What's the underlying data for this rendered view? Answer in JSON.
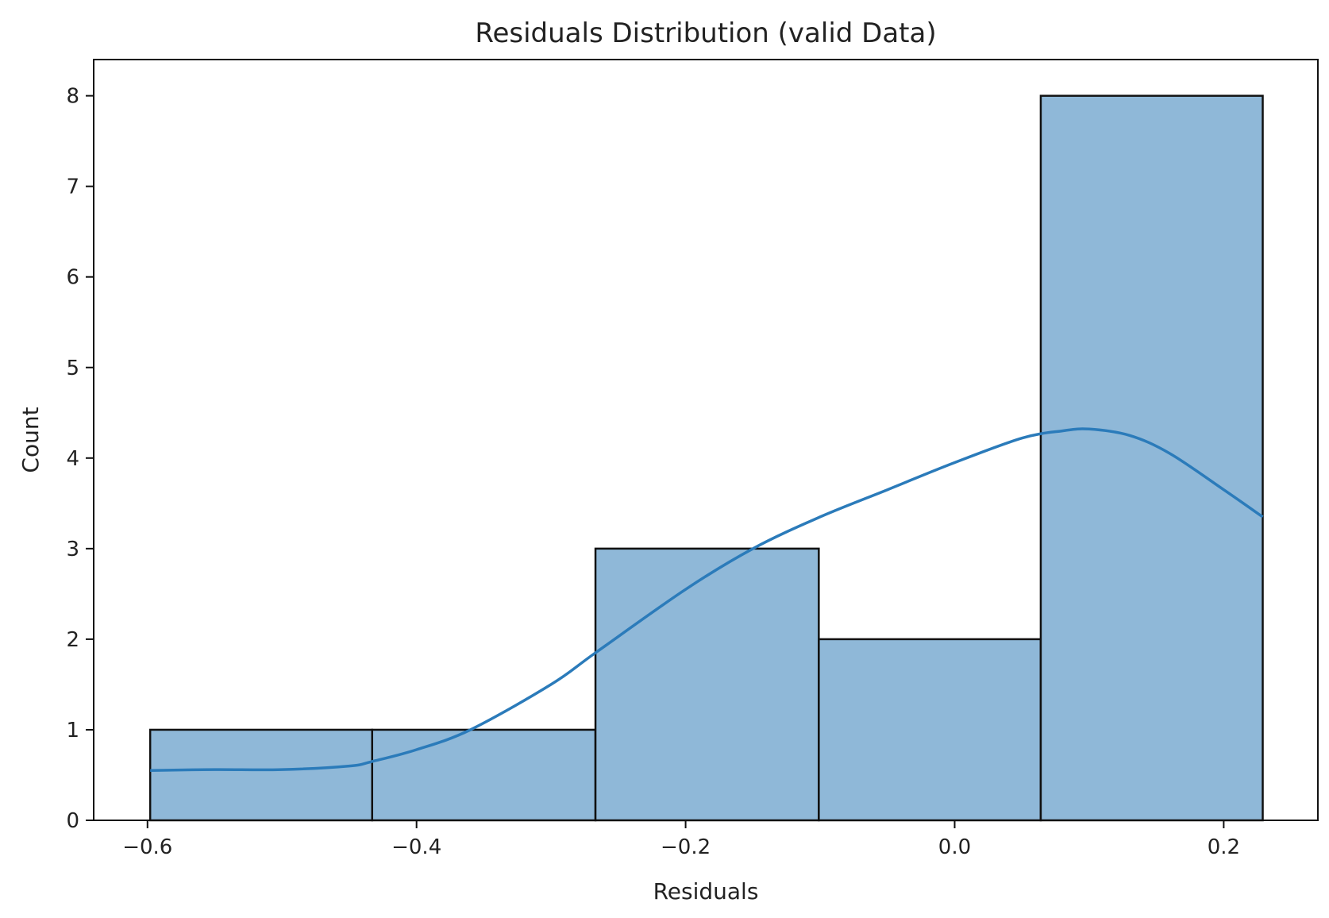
{
  "chart_data": {
    "type": "bar",
    "title": "Residuals Distribution (valid Data)",
    "xlabel": "Residuals",
    "ylabel": "Count",
    "xlim": [
      -0.64,
      0.27
    ],
    "ylim": [
      0,
      8.4
    ],
    "x_ticks": [
      -0.6,
      -0.4,
      -0.2,
      0.0,
      0.2
    ],
    "x_tick_labels": [
      "−0.6",
      "−0.4",
      "−0.2",
      "0.0",
      "0.2"
    ],
    "y_ticks": [
      0,
      1,
      2,
      3,
      4,
      5,
      6,
      7,
      8
    ],
    "y_tick_labels": [
      "0",
      "1",
      "2",
      "3",
      "4",
      "5",
      "6",
      "7",
      "8"
    ],
    "bins": [
      {
        "x0": -0.598,
        "x1": -0.433,
        "count": 1
      },
      {
        "x0": -0.433,
        "x1": -0.267,
        "count": 1
      },
      {
        "x0": -0.267,
        "x1": -0.101,
        "count": 3
      },
      {
        "x0": -0.101,
        "x1": 0.064,
        "count": 2
      },
      {
        "x0": 0.064,
        "x1": 0.229,
        "count": 8
      }
    ],
    "kde": {
      "x": [
        -0.598,
        -0.55,
        -0.5,
        -0.45,
        -0.433,
        -0.4,
        -0.36,
        -0.3,
        -0.267,
        -0.2,
        -0.15,
        -0.1,
        -0.05,
        0.0,
        0.05,
        0.08,
        0.1,
        0.13,
        0.16,
        0.2,
        0.229
      ],
      "y": [
        0.55,
        0.56,
        0.56,
        0.6,
        0.65,
        0.78,
        1.0,
        1.5,
        1.85,
        2.55,
        3.0,
        3.35,
        3.65,
        3.95,
        4.22,
        4.3,
        4.32,
        4.25,
        4.05,
        3.65,
        3.35
      ]
    },
    "grid": false,
    "legend": "none",
    "colors": {
      "bar_fill": "#8fb8d8",
      "bar_edge": "#111111",
      "kde_line": "#2b7bba",
      "axis": "#111111",
      "background": "#ffffff"
    }
  }
}
